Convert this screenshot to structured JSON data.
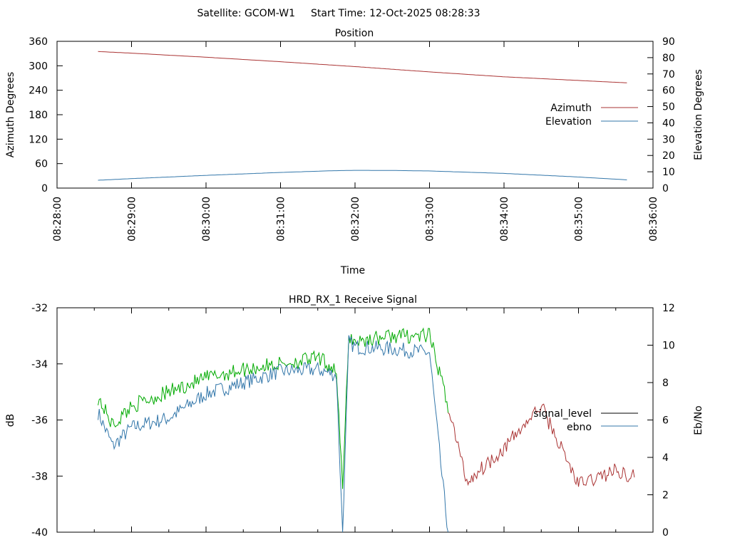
{
  "header": {
    "satellite": "Satellite: GCOM-W1",
    "start_time": "Start Time: 12-Oct-2025 08:28:33"
  },
  "chart_data": [
    {
      "type": "line",
      "title": "Position",
      "xlabel": "Time",
      "ylabel": "Azimuth Degrees",
      "y2label": "Elevation Degrees",
      "xlim": [
        "08:28:00",
        "08:36:00"
      ],
      "xticks": [
        "08:28:00",
        "08:29:00",
        "08:30:00",
        "08:31:00",
        "08:32:00",
        "08:33:00",
        "08:34:00",
        "08:35:00",
        "08:36:00"
      ],
      "ylim": [
        0,
        360
      ],
      "yticks": [
        "0",
        "60",
        "120",
        "180",
        "240",
        "300",
        "360"
      ],
      "y2lim": [
        0,
        90
      ],
      "y2ticks": [
        "0",
        "10",
        "20",
        "30",
        "40",
        "50",
        "60",
        "70",
        "80",
        "90"
      ],
      "legend_position": "right",
      "grid": false,
      "series": [
        {
          "name": "Azimuth",
          "axis": "left",
          "color": "#aa3333",
          "x": [
            "08:28:33",
            "08:29:00",
            "08:30:00",
            "08:31:00",
            "08:32:00",
            "08:33:00",
            "08:34:00",
            "08:35:00",
            "08:35:40"
          ],
          "values": [
            335,
            331,
            321,
            310,
            298,
            285,
            273,
            264,
            258
          ]
        },
        {
          "name": "Elevation",
          "axis": "right",
          "color": "#3377aa",
          "x": [
            "08:28:33",
            "08:29:00",
            "08:30:00",
            "08:31:00",
            "08:31:40",
            "08:32:00",
            "08:32:30",
            "08:33:00",
            "08:34:00",
            "08:35:00",
            "08:35:40"
          ],
          "values": [
            4.8,
            5.8,
            7.8,
            9.6,
            10.6,
            10.9,
            10.8,
            10.5,
            9.0,
            6.8,
            5.0
          ]
        }
      ]
    },
    {
      "type": "line",
      "title": "HRD_RX_1 Receive Signal",
      "xlabel": "",
      "ylabel": "dB",
      "y2label": "Eb/No",
      "xlim": [
        "08:28:00",
        "08:36:00"
      ],
      "ylim": [
        -40,
        -32
      ],
      "yticks": [
        "-40",
        "-38",
        "-36",
        "-34",
        "-32"
      ],
      "y2lim": [
        0,
        12
      ],
      "y2ticks": [
        "0",
        "2",
        "4",
        "6",
        "8",
        "10",
        "12"
      ],
      "legend_position": "right",
      "grid": false,
      "series": [
        {
          "name": "signal_level",
          "axis": "left",
          "color": "#000000",
          "segment_colors": {
            "early": "#00aa00",
            "late": "#aa3333"
          },
          "x": [
            "08:28:33",
            "08:28:45",
            "08:29:00",
            "08:29:30",
            "08:30:00",
            "08:30:30",
            "08:31:00",
            "08:31:30",
            "08:31:45",
            "08:31:50",
            "08:31:55",
            "08:32:00",
            "08:32:30",
            "08:33:00",
            "08:33:15",
            "08:33:30",
            "08:34:00",
            "08:34:30",
            "08:35:00",
            "08:35:30",
            "08:35:45"
          ],
          "values": [
            -35.2,
            -36.2,
            -35.5,
            -35.0,
            -34.5,
            -34.2,
            -34.0,
            -33.8,
            -34.2,
            -38.5,
            -33.0,
            -33.2,
            -33.0,
            -33.0,
            -35.5,
            -38.2,
            -37.0,
            -35.5,
            -38.3,
            -37.8,
            -38.0
          ]
        },
        {
          "name": "ebno",
          "axis": "right",
          "color": "#3377aa",
          "x": [
            "08:28:33",
            "08:28:45",
            "08:29:00",
            "08:29:30",
            "08:30:00",
            "08:30:30",
            "08:31:00",
            "08:31:30",
            "08:31:45",
            "08:31:50",
            "08:31:55",
            "08:32:00",
            "08:32:30",
            "08:33:00",
            "08:33:10",
            "08:33:15"
          ],
          "values": [
            6.4,
            4.6,
            5.6,
            6.1,
            7.4,
            8.0,
            8.6,
            8.7,
            8.4,
            0.0,
            10.2,
            9.9,
            9.8,
            9.6,
            3.0,
            0.0
          ]
        }
      ]
    }
  ]
}
